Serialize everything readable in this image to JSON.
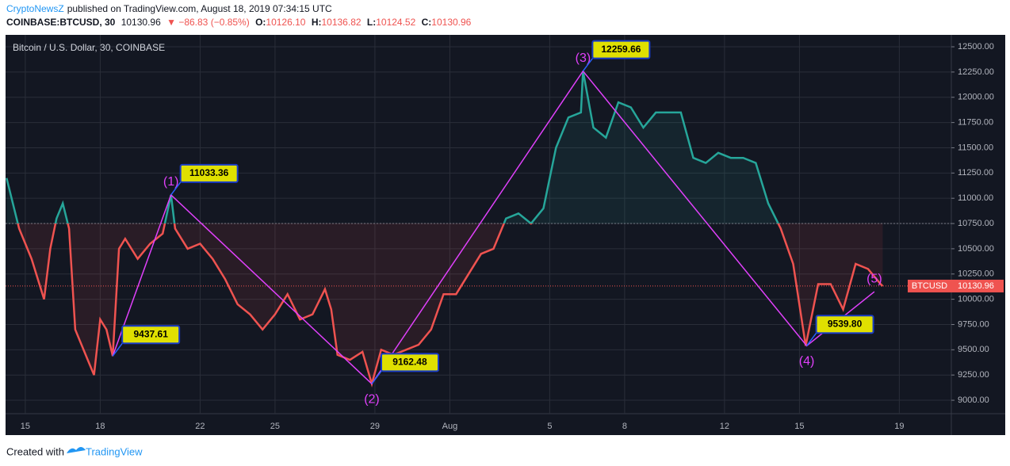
{
  "header": {
    "author": "CryptoNewsZ",
    "published": "published on TradingView.com, August 18, 2019 07:34:15 UTC",
    "symbol": "COINBASE:BTCUSD, 30",
    "last": "10130.96",
    "change": "▼ −86.83 (−0.85%)",
    "ohlc": [
      {
        "label": "O:",
        "value": "10126.10"
      },
      {
        "label": "H:",
        "value": "10136.82"
      },
      {
        "label": "L:",
        "value": "10124.52"
      },
      {
        "label": "C:",
        "value": "10130.96"
      }
    ]
  },
  "footer": {
    "text": "Created with",
    "brand": "TradingView"
  },
  "chart_data": {
    "type": "line",
    "legend": "Bitcoin / U.S. Dollar, 30, COINBASE",
    "x": [
      "2019-07-14T06:00",
      "2019-07-14T18:00",
      "2019-07-15T06:00",
      "2019-07-15T18:00",
      "2019-07-16T00:00",
      "2019-07-16T06:00",
      "2019-07-16T12:00",
      "2019-07-16T18:00",
      "2019-07-17T00:00",
      "2019-07-17T12:00",
      "2019-07-17T18:00",
      "2019-07-18T00:00",
      "2019-07-18T06:00",
      "2019-07-18T12:00",
      "2019-07-18T18:00",
      "2019-07-19T00:00",
      "2019-07-19T12:00",
      "2019-07-20T00:00",
      "2019-07-20T12:00",
      "2019-07-20T20:00",
      "2019-07-21T00:00",
      "2019-07-21T12:00",
      "2019-07-22T00:00",
      "2019-07-22T12:00",
      "2019-07-23T00:00",
      "2019-07-23T12:00",
      "2019-07-24T00:00",
      "2019-07-24T12:00",
      "2019-07-25T00:00",
      "2019-07-25T12:00",
      "2019-07-26T00:00",
      "2019-07-26T12:00",
      "2019-07-27T00:00",
      "2019-07-27T06:00",
      "2019-07-27T12:00",
      "2019-07-28T00:00",
      "2019-07-28T12:00",
      "2019-07-28T21:00",
      "2019-07-29T06:00",
      "2019-07-29T18:00",
      "2019-07-30T06:00",
      "2019-07-30T18:00",
      "2019-07-31T06:00",
      "2019-07-31T18:00",
      "2019-08-01T06:00",
      "2019-08-01T18:00",
      "2019-08-02T06:00",
      "2019-08-02T18:00",
      "2019-08-03T06:00",
      "2019-08-03T18:00",
      "2019-08-04T06:00",
      "2019-08-04T18:00",
      "2019-08-05T06:00",
      "2019-08-05T18:00",
      "2019-08-06T06:00",
      "2019-08-06T08:00",
      "2019-08-06T18:00",
      "2019-08-07T06:00",
      "2019-08-07T18:00",
      "2019-08-08T06:00",
      "2019-08-08T18:00",
      "2019-08-09T06:00",
      "2019-08-09T18:00",
      "2019-08-10T06:00",
      "2019-08-10T18:00",
      "2019-08-11T06:00",
      "2019-08-11T18:00",
      "2019-08-12T06:00",
      "2019-08-12T18:00",
      "2019-08-13T06:00",
      "2019-08-13T18:00",
      "2019-08-14T06:00",
      "2019-08-14T18:00",
      "2019-08-15T06:00",
      "2019-08-15T18:00",
      "2019-08-16T06:00",
      "2019-08-16T18:00",
      "2019-08-17T06:00",
      "2019-08-17T18:00",
      "2019-08-18T06:00",
      "2019-08-18T08:00"
    ],
    "series": [
      {
        "name": "BTCUSD",
        "color": "#ef5350",
        "color_above": "#26a69a",
        "values": [
          11200,
          10700,
          10400,
          10000,
          10500,
          10800,
          10950,
          10700,
          9700,
          9400,
          9250,
          9800,
          9700,
          9437.61,
          10500,
          10600,
          10400,
          10550,
          10650,
          11033.36,
          10700,
          10500,
          10550,
          10400,
          10200,
          9950,
          9850,
          9700,
          9850,
          10050,
          9800,
          9850,
          10100,
          9900,
          9450,
          9400,
          9480,
          9162.48,
          9500,
          9450,
          9500,
          9550,
          9700,
          10050,
          10050,
          10250,
          10450,
          10500,
          10800,
          10850,
          10750,
          10900,
          11500,
          11800,
          11850,
          12259.66,
          11700,
          11600,
          11950,
          11900,
          11700,
          11850,
          11850,
          11850,
          11400,
          11350,
          11450,
          11400,
          11400,
          11350,
          10950,
          10700,
          10350,
          9539.8,
          10150,
          10150,
          9900,
          10350,
          10300,
          10150,
          10130.96
        ]
      }
    ],
    "baseline": 10750,
    "waves": {
      "color": "#e040fb",
      "x": [
        "2019-07-18T12:00",
        "2019-07-20T20:00",
        "2019-07-28T21:00",
        "2019-08-06T08:00",
        "2019-08-15T07:00",
        "2019-08-18T00:00"
      ],
      "values": [
        9437.61,
        11033.36,
        9162.48,
        12259.66,
        9539.8,
        10075
      ],
      "value_labels": [
        "9437.61",
        "11033.36",
        "9162.48",
        "12259.66",
        "9539.80",
        null
      ],
      "labels": [
        null,
        "(1)",
        "(2)",
        "(3)",
        "(4)",
        "(5)"
      ]
    },
    "xlim": [
      "2019-07-14T05:00",
      "2019-08-21T02:00"
    ],
    "xticks": [
      {
        "value": "2019-07-15T00:00",
        "label": "15"
      },
      {
        "value": "2019-07-18T00:00",
        "label": "18"
      },
      {
        "value": "2019-07-22T00:00",
        "label": "22"
      },
      {
        "value": "2019-07-25T00:00",
        "label": "25"
      },
      {
        "value": "2019-07-29T00:00",
        "label": "29"
      },
      {
        "value": "2019-08-01T00:00",
        "label": "Aug"
      },
      {
        "value": "2019-08-05T00:00",
        "label": "5"
      },
      {
        "value": "2019-08-08T00:00",
        "label": "8"
      },
      {
        "value": "2019-08-12T00:00",
        "label": "12"
      },
      {
        "value": "2019-08-15T00:00",
        "label": "15"
      },
      {
        "value": "2019-08-19T00:00",
        "label": "19"
      }
    ],
    "ylim": [
      8867,
      12618
    ],
    "yticks": [
      {
        "value": 9000,
        "label": "9000.00"
      },
      {
        "value": 9250,
        "label": "9250.00"
      },
      {
        "value": 9500,
        "label": "9500.00"
      },
      {
        "value": 9750,
        "label": "9750.00"
      },
      {
        "value": 10000,
        "label": "10000.00"
      },
      {
        "value": 10250,
        "label": "10250.00"
      },
      {
        "value": 10500,
        "label": "10500.00"
      },
      {
        "value": 10750,
        "label": "10750.00"
      },
      {
        "value": 11000,
        "label": "11000.00"
      },
      {
        "value": 11250,
        "label": "11250.00"
      },
      {
        "value": 11500,
        "label": "11500.00"
      },
      {
        "value": 11750,
        "label": "11750.00"
      },
      {
        "value": 12000,
        "label": "12000.00"
      },
      {
        "value": 12250,
        "label": "12250.00"
      },
      {
        "value": 12500,
        "label": "12500.00"
      }
    ],
    "grid": true
  }
}
